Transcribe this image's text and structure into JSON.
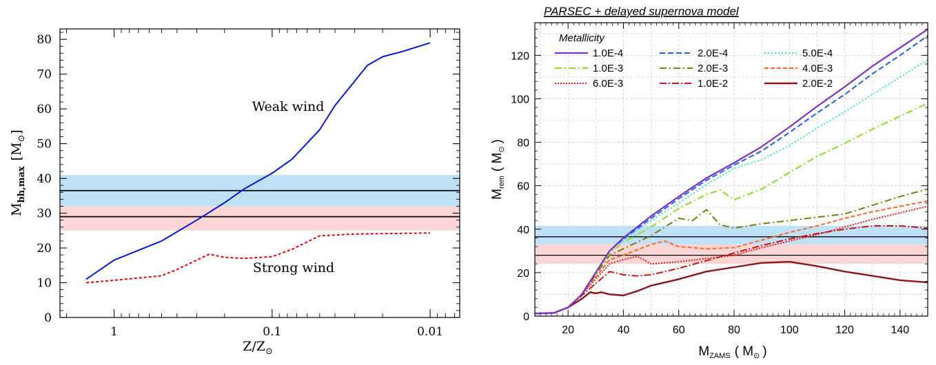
{
  "chart_data": [
    {
      "type": "line",
      "xlabel_text": "Z/Z",
      "xlabel_sub": "⊙",
      "ylabel_main": "M",
      "ylabel_sub": "bh,max",
      "ylabel_unit": "[M",
      "ylabel_unit_sub": "⊙",
      "ylabel_close": "]",
      "x_scale": "log (reversed)",
      "xlim": [
        2.2,
        0.0065
      ],
      "ylim": [
        0,
        83
      ],
      "xticks": [
        1,
        0.1,
        0.01
      ],
      "xtick_labels": [
        "1",
        "0.1",
        "0.01"
      ],
      "yticks": [
        0,
        10,
        20,
        30,
        40,
        50,
        60,
        70,
        80
      ],
      "ytick_labels": [
        "0",
        "10",
        "20",
        "30",
        "40",
        "50",
        "60",
        "70",
        "80"
      ],
      "bands": [
        {
          "y0": 32,
          "y1": 41,
          "color": "#bfe1f8"
        },
        {
          "y0": 25,
          "y1": 32,
          "color": "#fbd6d6"
        }
      ],
      "hlines": [
        36.5,
        29
      ],
      "series": [
        {
          "color": "#0018d8",
          "style": "solid",
          "x": [
            1.5,
            1.0,
            0.5,
            0.3,
            0.2,
            0.15,
            0.1,
            0.075,
            0.05,
            0.04,
            0.03,
            0.025,
            0.02,
            0.015,
            0.01
          ],
          "y": [
            11,
            16.5,
            22,
            28,
            33,
            37,
            41.5,
            45.5,
            54,
            61,
            68,
            72.5,
            75,
            76.5,
            79
          ]
        },
        {
          "color": "#e00000",
          "style": "dashed",
          "x": [
            1.5,
            1.0,
            0.5,
            0.4,
            0.3,
            0.25,
            0.2,
            0.15,
            0.1,
            0.075,
            0.05,
            0.03,
            0.01
          ],
          "y": [
            10,
            10.7,
            12,
            13.8,
            16.5,
            18.2,
            17.3,
            17,
            17.5,
            19.6,
            23.5,
            24,
            24.3
          ]
        }
      ],
      "annotations": [
        {
          "text": "Weak wind",
          "x": 0.165,
          "y": 60
        },
        {
          "text": "Strong wind",
          "x": 0.125,
          "y": 13.5
        }
      ]
    },
    {
      "type": "line",
      "title": "PARSEC + delayed supernova model",
      "xlabel_main": "M",
      "xlabel_sub": "ZAMS",
      "xlabel_unit": "( M",
      "xlabel_unit_sub": "⊙",
      "xlabel_close": ")",
      "ylabel_main": "M",
      "ylabel_sub": "rem",
      "ylabel_unit": "( M",
      "ylabel_unit_sub": "⊙",
      "ylabel_close": ")",
      "xlim": [
        8,
        150
      ],
      "ylim": [
        0,
        135
      ],
      "xticks": [
        20,
        40,
        60,
        80,
        100,
        120,
        140
      ],
      "xtick_labels": [
        "20",
        "40",
        "60",
        "80",
        "100",
        "120",
        "140"
      ],
      "yticks": [
        0,
        20,
        40,
        60,
        80,
        100,
        120
      ],
      "ytick_labels": [
        "0",
        "20",
        "40",
        "60",
        "80",
        "100",
        "120"
      ],
      "grid": true,
      "legend_title": "Metallicity",
      "legend_position": "top-left",
      "bands": [
        {
          "y0": 33,
          "y1": 41.5,
          "color": "#bfe1f8"
        },
        {
          "y0": 24,
          "y1": 33,
          "color": "#fbd6d6"
        }
      ],
      "hlines": [
        36.5,
        28
      ],
      "series": [
        {
          "name": "1.0E-4",
          "color": "#7b2fc9",
          "dash": "",
          "width": 2.2,
          "x": [
            8,
            15,
            20,
            25,
            30,
            35,
            40,
            50,
            60,
            70,
            80,
            90,
            100,
            110,
            120,
            130,
            140,
            150
          ],
          "y": [
            1.2,
            1.5,
            4,
            10,
            20,
            30,
            36,
            46,
            55,
            63.5,
            70.5,
            78,
            87,
            96.5,
            105.5,
            115,
            123.5,
            132
          ]
        },
        {
          "name": "2.0E-4",
          "color": "#1f5ee8",
          "dash": "8,4",
          "width": 2,
          "x": [
            8,
            15,
            20,
            25,
            30,
            35,
            40,
            50,
            60,
            70,
            80,
            90,
            100,
            110,
            120,
            130,
            140,
            150
          ],
          "y": [
            1.2,
            1.5,
            4,
            10,
            20,
            30,
            35.5,
            45,
            54,
            62.5,
            69.5,
            76,
            84.5,
            93.5,
            102,
            111.5,
            120,
            129
          ]
        },
        {
          "name": "5.0E-4",
          "color": "#33dfe0",
          "dash": "2,3",
          "width": 2,
          "x": [
            8,
            15,
            20,
            25,
            30,
            35,
            40,
            50,
            60,
            70,
            80,
            90,
            100,
            110,
            120,
            130,
            140,
            150
          ],
          "y": [
            1.2,
            1.5,
            4,
            10,
            20,
            30,
            35,
            44,
            52,
            60.5,
            68,
            72,
            78.5,
            86.5,
            94,
            102,
            110,
            118
          ]
        },
        {
          "name": "1.0E-3",
          "color": "#88dd22",
          "dash": "10,4,2,4",
          "width": 2,
          "x": [
            8,
            15,
            20,
            25,
            30,
            35,
            40,
            50,
            60,
            70,
            75,
            80,
            90,
            100,
            110,
            120,
            130,
            140,
            150
          ],
          "y": [
            1.2,
            1.5,
            4,
            10,
            20,
            29,
            34,
            41,
            49.5,
            56,
            58,
            53.5,
            58.5,
            66,
            73.5,
            79.5,
            86,
            92,
            98
          ]
        },
        {
          "name": "2.0E-3",
          "color": "#7a7a10",
          "dash": "10,4,2,4",
          "width": 2,
          "x": [
            8,
            15,
            20,
            25,
            30,
            35,
            40,
            50,
            60,
            65,
            70,
            75,
            80,
            90,
            100,
            110,
            120,
            130,
            140,
            150
          ],
          "y": [
            1.2,
            1.5,
            4,
            10,
            19,
            28,
            31,
            37,
            45,
            44,
            49,
            42,
            40.5,
            42.5,
            44,
            45.5,
            47,
            51,
            55,
            58.5
          ]
        },
        {
          "name": "4.0E-3",
          "color": "#ff6622",
          "dash": "6,3",
          "width": 2,
          "x": [
            8,
            15,
            20,
            25,
            30,
            35,
            40,
            50,
            55,
            60,
            70,
            80,
            90,
            100,
            110,
            120,
            130,
            140,
            150
          ],
          "y": [
            1.2,
            1.5,
            4,
            10,
            18,
            26,
            28,
            33,
            34.5,
            32,
            31,
            31.5,
            35,
            38.5,
            41.5,
            45,
            48,
            50.5,
            53
          ]
        },
        {
          "name": "6.0E-3",
          "color": "#ee1111",
          "dash": "2,2",
          "width": 2,
          "x": [
            8,
            15,
            20,
            25,
            30,
            35,
            40,
            45,
            50,
            60,
            70,
            80,
            90,
            100,
            110,
            120,
            130,
            140,
            150
          ],
          "y": [
            1.2,
            1.5,
            4,
            10,
            17,
            24,
            26,
            27.5,
            24,
            25,
            26.5,
            28,
            31.5,
            34.5,
            37.5,
            41,
            44.5,
            47.5,
            50.5
          ]
        },
        {
          "name": "1.0E-2",
          "color": "#cc1111",
          "dash": "10,3,2,3",
          "width": 2,
          "x": [
            8,
            15,
            20,
            25,
            30,
            35,
            40,
            45,
            50,
            60,
            70,
            80,
            90,
            100,
            110,
            120,
            130,
            140,
            150
          ],
          "y": [
            1.2,
            1.5,
            4,
            9.5,
            15,
            20.5,
            19,
            18.5,
            19,
            22,
            25.5,
            29,
            32.5,
            35.5,
            38,
            40,
            41.5,
            41.5,
            40.5
          ]
        },
        {
          "name": "2.0E-2",
          "color": "#8b1414",
          "dash": "",
          "width": 2.4,
          "x": [
            8,
            15,
            20,
            25,
            28,
            30,
            32,
            35,
            40,
            45,
            50,
            60,
            70,
            80,
            90,
            100,
            110,
            120,
            130,
            140,
            150
          ],
          "y": [
            1.2,
            1.5,
            4,
            8,
            11,
            10.5,
            11,
            10,
            9.5,
            11.5,
            14,
            17,
            20.5,
            22.5,
            24.5,
            25,
            23,
            20.5,
            18.5,
            16.5,
            15.5
          ]
        }
      ]
    }
  ]
}
